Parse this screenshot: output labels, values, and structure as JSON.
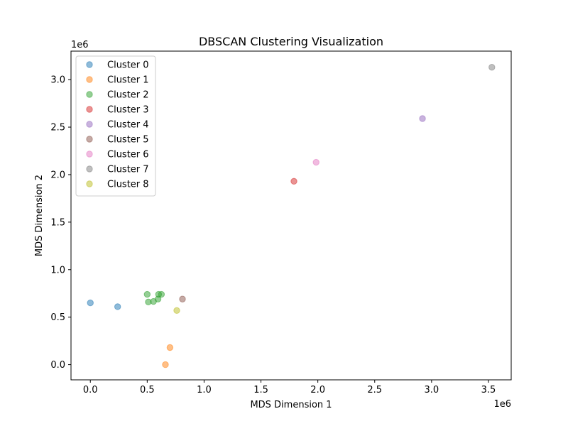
{
  "chart_data": {
    "type": "scatter",
    "title": "DBSCAN Clustering Visualization",
    "xlabel": "MDS Dimension 1",
    "ylabel": "MDS Dimension 2",
    "x_offset_label": "1e6",
    "y_offset_label": "1e6",
    "xlim": [
      -170000,
      3700000
    ],
    "ylim": [
      -160000,
      3300000
    ],
    "xticks": [
      0.0,
      0.5,
      1.0,
      1.5,
      2.0,
      2.5,
      3.0,
      3.5
    ],
    "xtick_labels": [
      "0.0",
      "0.5",
      "1.0",
      "1.5",
      "2.0",
      "2.5",
      "3.0",
      "3.5"
    ],
    "yticks": [
      0.0,
      0.5,
      1.0,
      1.5,
      2.0,
      2.5,
      3.0
    ],
    "ytick_labels": [
      "0.0",
      "0.5",
      "1.0",
      "1.5",
      "2.0",
      "2.5",
      "3.0"
    ],
    "grid": false,
    "legend_position": "upper-left",
    "marker_alpha": 0.5,
    "series": [
      {
        "name": "Cluster 0",
        "color": "#1f77b4",
        "points": [
          [
            0,
            650000
          ],
          [
            240000,
            610000
          ]
        ]
      },
      {
        "name": "Cluster 1",
        "color": "#ff7f0e",
        "points": [
          [
            700000,
            180000
          ],
          [
            660000,
            0
          ]
        ]
      },
      {
        "name": "Cluster 2",
        "color": "#2ca02c",
        "points": [
          [
            500000,
            740000
          ],
          [
            600000,
            740000
          ],
          [
            625000,
            740000
          ],
          [
            510000,
            660000
          ],
          [
            555000,
            665000
          ],
          [
            595000,
            690000
          ]
        ]
      },
      {
        "name": "Cluster 3",
        "color": "#d62728",
        "points": [
          [
            1790000,
            1930000
          ]
        ]
      },
      {
        "name": "Cluster 4",
        "color": "#9467bd",
        "points": [
          [
            2920000,
            2590000
          ]
        ]
      },
      {
        "name": "Cluster 5",
        "color": "#8c564b",
        "points": [
          [
            810000,
            690000
          ]
        ]
      },
      {
        "name": "Cluster 6",
        "color": "#e377c2",
        "points": [
          [
            1985000,
            2130000
          ]
        ]
      },
      {
        "name": "Cluster 7",
        "color": "#7f7f7f",
        "points": [
          [
            3530000,
            3130000
          ]
        ]
      },
      {
        "name": "Cluster 8",
        "color": "#bcbd22",
        "points": [
          [
            760000,
            570000
          ]
        ]
      }
    ]
  }
}
